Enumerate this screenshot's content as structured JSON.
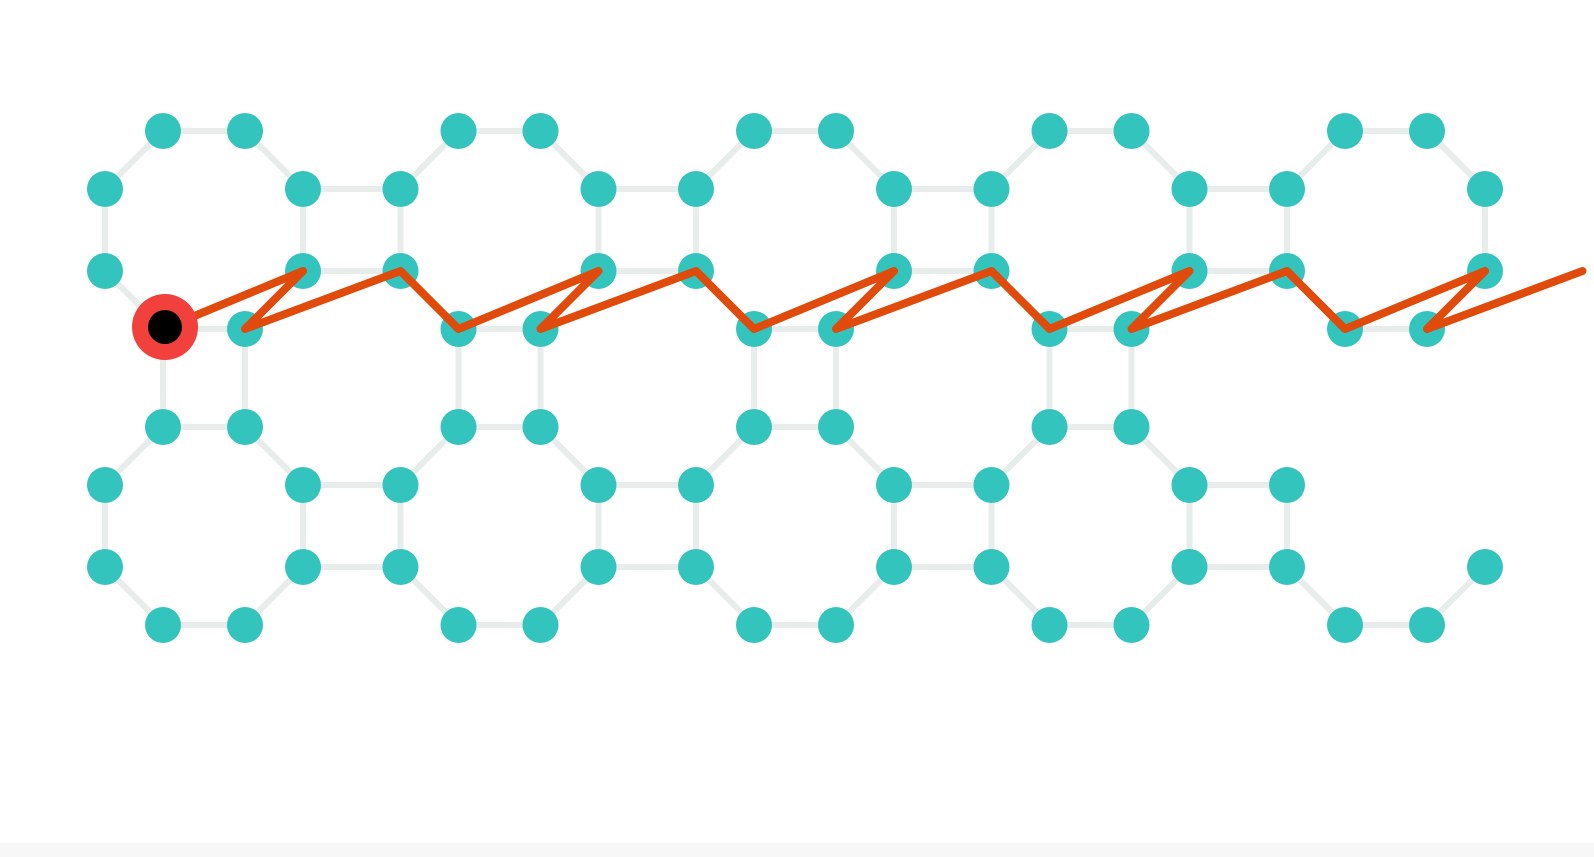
{
  "colors": {
    "background": "#ffffff",
    "node": "#33c4bd",
    "edge": "#e8eceb",
    "path": "#e04a0a",
    "start_ring": "#f2403d",
    "start_core": "#000000",
    "footer": "#f7f7f7"
  },
  "lattice": {
    "type": "truncated-square",
    "unit_cells_x": 5,
    "unit_cells_y": 2,
    "missing_nodes": [
      "4-1-1",
      "4-1-2",
      "4-1-3"
    ]
  },
  "path": {
    "node_sequence": [
      "0-0-6",
      "0-0-4",
      "0-0-5",
      "1-0-7",
      "1-0-6",
      "1-0-4",
      "1-0-5",
      "2-0-7",
      "2-0-6",
      "2-0-4",
      "2-0-5",
      "3-0-7",
      "3-0-6",
      "3-0-4",
      "3-0-5",
      "4-0-7",
      "4-0-6",
      "4-0-4",
      "4-0-5",
      "5-0-7"
    ]
  },
  "start_marker": {
    "node": "0-0-6",
    "icon": "start-point-icon"
  }
}
